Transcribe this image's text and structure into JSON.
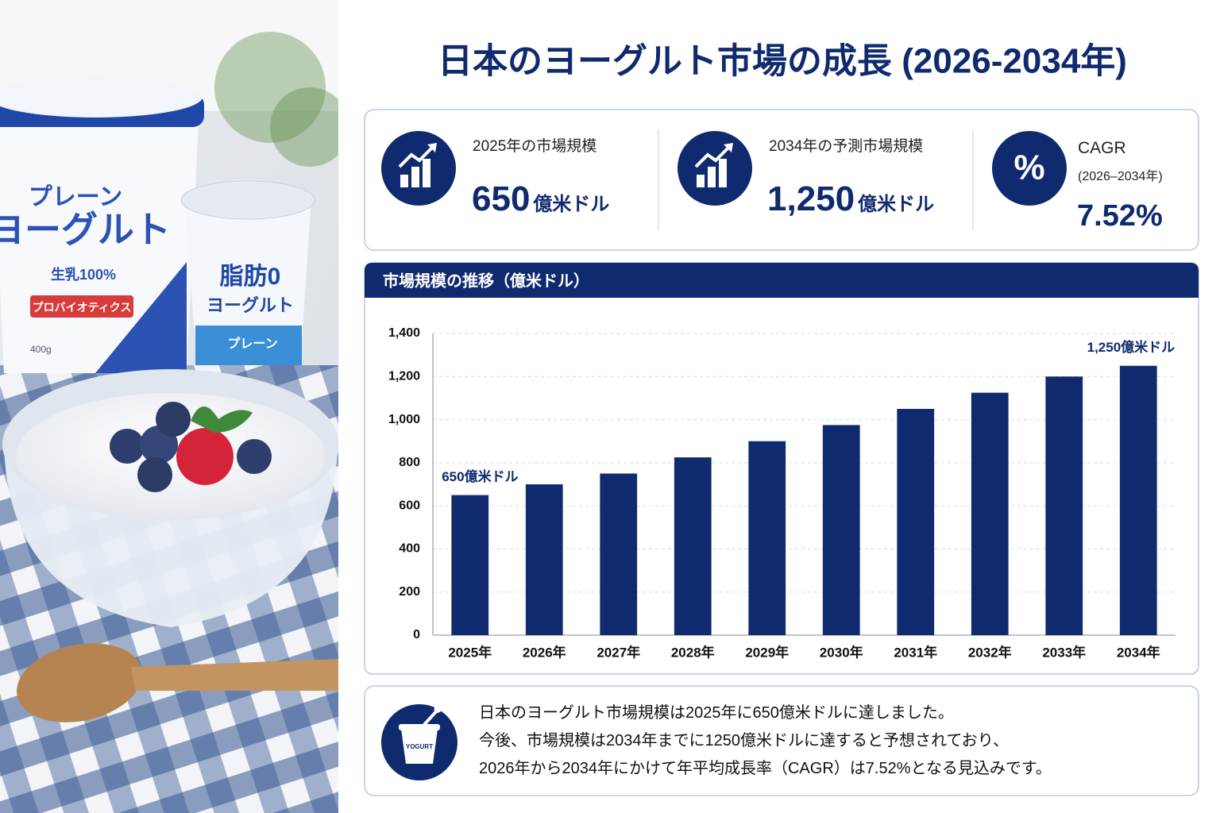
{
  "header": {
    "title": "日本のヨーグルト市場の成長 (2026-2034年)"
  },
  "kpis": [
    {
      "label": "2025年の市場規模",
      "value": "650",
      "unit": "億米ドル"
    },
    {
      "label": "2034年の予測市場規模",
      "value": "1,250",
      "unit": "億米ドル"
    },
    {
      "icon": "%",
      "label": "CAGR",
      "sublabel": "(2026–2034年)",
      "value": "7.52%"
    }
  ],
  "chart_data": {
    "type": "bar",
    "title": "市場規模の推移（億米ドル）",
    "categories": [
      "2025年",
      "2026年",
      "2027年",
      "2028年",
      "2029年",
      "2030年",
      "2031年",
      "2032年",
      "2033年",
      "2034年"
    ],
    "values": [
      650,
      700,
      750,
      825,
      900,
      975,
      1050,
      1125,
      1200,
      1250
    ],
    "value_labels": [
      "650億米ドル",
      null,
      null,
      null,
      null,
      null,
      null,
      null,
      null,
      "1,250億米ドル"
    ],
    "color": "#0f2a6e",
    "ylim": [
      0,
      1400
    ],
    "yticks": [
      0,
      200,
      400,
      600,
      800,
      {
        "value": 1000,
        "label": "1,000"
      },
      {
        "value": 1200,
        "label": "1,200"
      },
      {
        "value": 1400,
        "label": "1,400"
      }
    ],
    "grid": true
  },
  "summary": {
    "icon_label": "YOGURT",
    "lines": [
      "日本のヨーグルト市場規模は2025年に650億米ドルに達しました。",
      "今後、市場規模は2034年までに1250億米ドルに達すると予想されており、",
      "2026年から2034年にかけて年平均成長率（CAGR）は7.52%となる見込みです。"
    ]
  },
  "photo": {
    "tub_large": [
      "プレーン",
      "ヨーグルト",
      "生乳100%",
      "プロバイオティクス",
      "400g"
    ],
    "tub_small": [
      "脂肪0",
      "ヨーグルト",
      "プレーン"
    ]
  }
}
